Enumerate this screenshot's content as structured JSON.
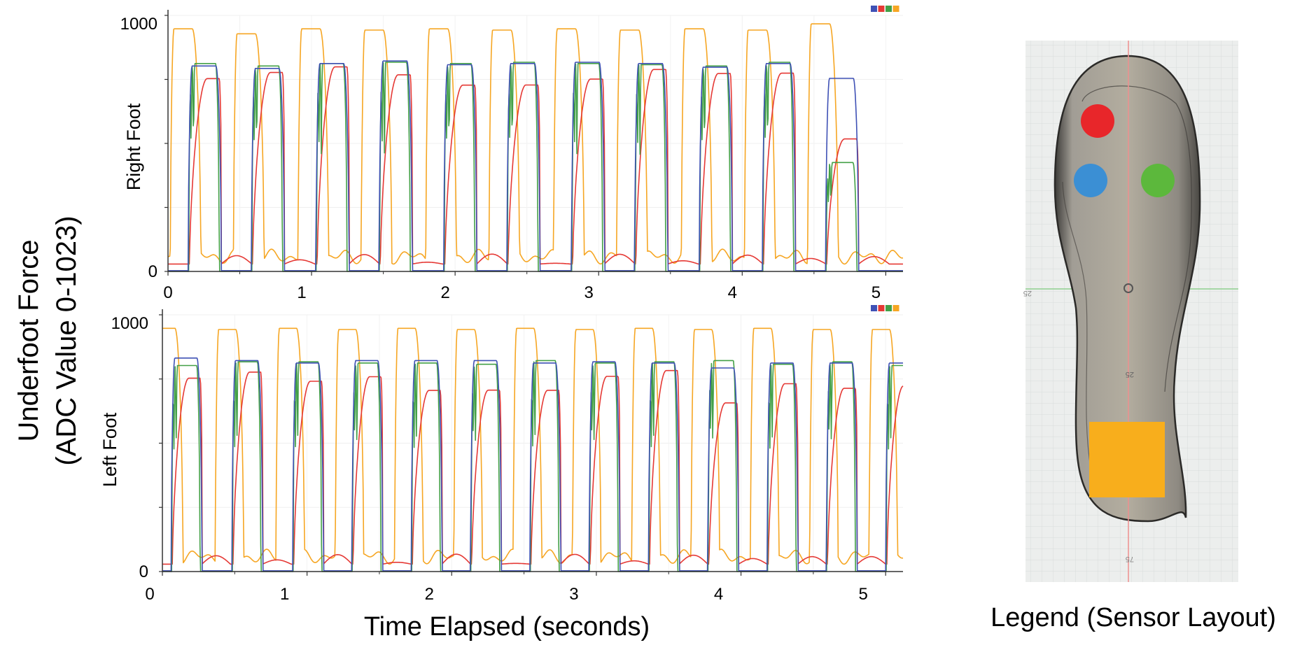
{
  "figure": {
    "y_title_line1": "Underfoot Force",
    "y_title_line2": "(ADC Value 0-1023)",
    "x_title": "Time Elapsed (seconds)",
    "legend_caption": "Legend (Sensor Layout)"
  },
  "colors": {
    "blue": "#3f51b5",
    "red": "#e53935",
    "green": "#43a047",
    "orange": "#f6a623"
  },
  "sensor_layout": {
    "sensors": [
      {
        "id": "red",
        "color": "#e8262a",
        "shape": "circle"
      },
      {
        "id": "blue",
        "color": "#3b8fd4",
        "shape": "circle"
      },
      {
        "id": "green",
        "color": "#5cb83c",
        "shape": "circle"
      },
      {
        "id": "orange",
        "color": "#f8ae1c",
        "shape": "square"
      }
    ],
    "ruler_marks": [
      "25",
      "25",
      "75"
    ]
  },
  "chart_data": [
    {
      "type": "line",
      "ylabel": "Right Foot",
      "xlim": [
        0,
        5.12
      ],
      "ylim": [
        0,
        1023
      ],
      "x_ticks": [
        "0",
        "1",
        "2",
        "3",
        "4",
        "5"
      ],
      "y_ticks": [
        "0",
        "1000"
      ],
      "period": 0.444,
      "series_colors": [
        "#3f51b5",
        "#e53935",
        "#43a047",
        "#f6a623"
      ],
      "cycles": [
        {
          "t": 0.14,
          "blue": 830,
          "red": 820,
          "green": 840,
          "orange": 980
        },
        {
          "t": 0.58,
          "blue": 820,
          "red": 810,
          "green": 830,
          "orange": 960
        },
        {
          "t": 1.03,
          "blue": 840,
          "red": 830,
          "green": 840,
          "orange": 980
        },
        {
          "t": 1.47,
          "blue": 850,
          "red": 830,
          "green": 845,
          "orange": 975
        },
        {
          "t": 1.92,
          "blue": 835,
          "red": 825,
          "green": 840,
          "orange": 980
        },
        {
          "t": 2.36,
          "blue": 840,
          "red": 835,
          "green": 845,
          "orange": 975
        },
        {
          "t": 2.81,
          "blue": 845,
          "red": 830,
          "green": 840,
          "orange": 980
        },
        {
          "t": 3.25,
          "blue": 840,
          "red": 830,
          "green": 835,
          "orange": 975
        },
        {
          "t": 3.7,
          "blue": 825,
          "red": 800,
          "green": 830,
          "orange": 980
        },
        {
          "t": 4.14,
          "blue": 840,
          "red": 825,
          "green": 845,
          "orange": 975
        },
        {
          "t": 4.58,
          "blue": 780,
          "red": 580,
          "green": 440,
          "orange": 1000
        }
      ]
    },
    {
      "type": "line",
      "ylabel": "Left Foot",
      "xlim": [
        0,
        5.12
      ],
      "ylim": [
        0,
        1023
      ],
      "x_ticks": [
        "0",
        "1",
        "2",
        "3",
        "4",
        "5"
      ],
      "y_ticks": [
        "0",
        "1000"
      ],
      "period": 0.41,
      "series_colors": [
        "#3f51b5",
        "#e53935",
        "#43a047",
        "#f6a623"
      ],
      "cycles": [
        {
          "t": 0.06,
          "blue": 860,
          "red": 820,
          "green": 830,
          "orange": 980
        },
        {
          "t": 0.48,
          "blue": 850,
          "red": 810,
          "green": 845,
          "orange": 975
        },
        {
          "t": 0.9,
          "blue": 840,
          "red": 770,
          "green": 845,
          "orange": 980
        },
        {
          "t": 1.31,
          "blue": 850,
          "red": 820,
          "green": 840,
          "orange": 975
        },
        {
          "t": 1.72,
          "blue": 850,
          "red": 800,
          "green": 840,
          "orange": 980
        },
        {
          "t": 2.13,
          "blue": 850,
          "red": 810,
          "green": 835,
          "orange": 975
        },
        {
          "t": 2.54,
          "blue": 840,
          "red": 780,
          "green": 850,
          "orange": 980
        },
        {
          "t": 2.95,
          "blue": 845,
          "red": 800,
          "green": 840,
          "orange": 975
        },
        {
          "t": 3.36,
          "blue": 840,
          "red": 810,
          "green": 845,
          "orange": 980
        },
        {
          "t": 3.77,
          "blue": 820,
          "red": 700,
          "green": 850,
          "orange": 975
        },
        {
          "t": 4.18,
          "blue": 840,
          "red": 820,
          "green": 835,
          "orange": 980
        },
        {
          "t": 4.59,
          "blue": 840,
          "red": 820,
          "green": 845,
          "orange": 975
        },
        {
          "t": 5.0,
          "blue": 840,
          "red": 810,
          "green": 830,
          "orange": 975
        }
      ]
    }
  ]
}
